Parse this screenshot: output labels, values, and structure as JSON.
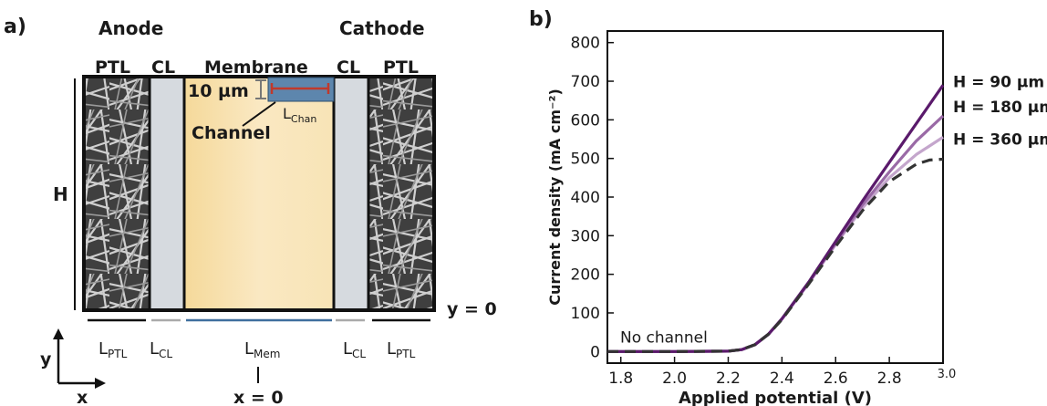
{
  "diagram": {
    "panel_label": "a)",
    "anode": "Anode",
    "cathode": "Cathode",
    "ptl_left": "PTL",
    "cl_left": "CL",
    "membrane": "Membrane",
    "cl_right": "CL",
    "ptl_right": "PTL",
    "channel_height": "10 µm",
    "channel": "Channel",
    "l_chan_main": "L",
    "l_chan_sub": "Chan",
    "height": "H",
    "y_zero": "y = 0",
    "x_zero": "x = 0",
    "axis_y": "y",
    "axis_x": "x",
    "lengths": [
      {
        "main": "L",
        "sub": "PTL"
      },
      {
        "main": "L",
        "sub": "CL"
      },
      {
        "main": "L",
        "sub": "Mem"
      },
      {
        "main": "L",
        "sub": "CL"
      },
      {
        "main": "L",
        "sub": "PTL"
      }
    ],
    "colors": {
      "membrane": "#f7e3b4",
      "cl": "#d6dadf",
      "channel": "#5d86ad",
      "chan_line": "#c0392b"
    }
  },
  "chart_data": {
    "type": "line",
    "panel_label": "b)",
    "xlabel": "Applied potential (V)",
    "ylabel": "Current density (mA cm⁻²)",
    "xlim": [
      1.75,
      3.0
    ],
    "ylim": [
      -30,
      830
    ],
    "x_ticks": [
      1.8,
      2.0,
      2.2,
      2.4,
      2.6,
      2.8,
      3.0
    ],
    "x_tick_labels": [
      "1.8",
      "2.0",
      "2.2",
      "2.4",
      "2.6",
      "2.8",
      "3.0"
    ],
    "y_ticks": [
      0,
      100,
      200,
      300,
      400,
      500,
      600,
      700,
      800
    ],
    "y_tick_labels": [
      "0",
      "100",
      "200",
      "300",
      "400",
      "500",
      "600",
      "700",
      "800"
    ],
    "series": [
      {
        "name": "H = 90 µm",
        "color": "#5a1a6b",
        "dashed": false,
        "x": [
          1.75,
          2.0,
          2.2,
          2.25,
          2.3,
          2.35,
          2.4,
          2.5,
          2.6,
          2.7,
          2.8,
          2.9,
          3.0
        ],
        "y": [
          0,
          0,
          1,
          5,
          18,
          45,
          85,
          180,
          285,
          390,
          490,
          590,
          690
        ]
      },
      {
        "name": "H = 180 µm",
        "color": "#9a6aa6",
        "dashed": false,
        "x": [
          1.75,
          2.0,
          2.2,
          2.25,
          2.3,
          2.35,
          2.4,
          2.5,
          2.6,
          2.7,
          2.8,
          2.9,
          3.0
        ],
        "y": [
          0,
          0,
          1,
          5,
          18,
          45,
          84,
          178,
          280,
          380,
          465,
          545,
          610
        ]
      },
      {
        "name": "H = 360 µm",
        "color": "#c4a6cc",
        "dashed": false,
        "x": [
          1.75,
          2.0,
          2.2,
          2.25,
          2.3,
          2.35,
          2.4,
          2.5,
          2.6,
          2.7,
          2.8,
          2.9,
          3.0
        ],
        "y": [
          0,
          0,
          1,
          5,
          18,
          45,
          84,
          177,
          277,
          372,
          450,
          510,
          555
        ]
      },
      {
        "name": "No channel",
        "color": "#333333",
        "dashed": true,
        "x": [
          1.75,
          2.0,
          2.2,
          2.25,
          2.3,
          2.35,
          2.4,
          2.5,
          2.6,
          2.7,
          2.8,
          2.9,
          2.95,
          3.0
        ],
        "y": [
          0,
          0,
          1,
          5,
          18,
          45,
          83,
          175,
          272,
          365,
          440,
          485,
          496,
          498
        ]
      }
    ]
  }
}
